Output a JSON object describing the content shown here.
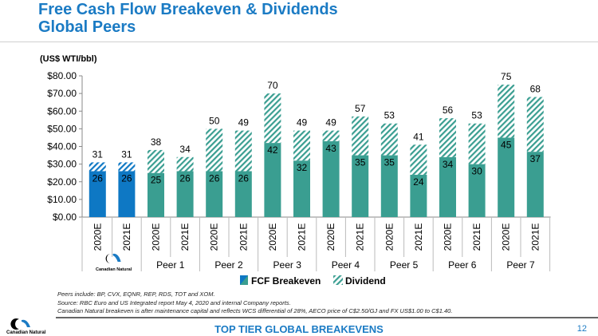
{
  "header": {
    "title_line1": "Free Cash Flow Breakeven & Dividends",
    "title_line2": "Global Peers"
  },
  "chart_data": {
    "type": "bar",
    "stacked": true,
    "ylabel": "(US$ WTI/bbl)",
    "ylim": [
      0,
      80
    ],
    "yticks": [
      "$0.00",
      "$10.00",
      "$20.00",
      "$30.00",
      "$40.00",
      "$50.00",
      "$60.00",
      "$70.00",
      "$80.00"
    ],
    "grid": false,
    "legend_position": "bottom",
    "groups": [
      {
        "label": "Canadian Natural",
        "logo": true
      },
      {
        "label": "Peer 1"
      },
      {
        "label": "Peer 2"
      },
      {
        "label": "Peer 3"
      },
      {
        "label": "Peer 4"
      },
      {
        "label": "Peer 5"
      },
      {
        "label": "Peer 6"
      },
      {
        "label": "Peer 7"
      }
    ],
    "categories": [
      "2020E",
      "2021E",
      "2020E",
      "2021E",
      "2020E",
      "2021E",
      "2020E",
      "2021E",
      "2020E",
      "2021E",
      "2020E",
      "2021E",
      "2020E",
      "2021E",
      "2020E",
      "2021E"
    ],
    "series": [
      {
        "name": "FCF Breakeven",
        "values": [
          26,
          26,
          25,
          26,
          26,
          26,
          42,
          32,
          43,
          35,
          35,
          24,
          34,
          30,
          45,
          37
        ]
      },
      {
        "name": "Dividend",
        "values": [
          5,
          5,
          13,
          8,
          24,
          23,
          28,
          17,
          6,
          22,
          18,
          17,
          22,
          23,
          30,
          31
        ],
        "pattern": "hatched"
      }
    ],
    "totals": [
      31,
      31,
      38,
      34,
      50,
      49,
      70,
      49,
      49,
      57,
      53,
      41,
      56,
      53,
      75,
      68
    ],
    "colors": {
      "canadian_natural": "#0e78c4",
      "peers": "#3a9e91"
    }
  },
  "notes": [
    "Peers include: BP, CVX, EQNR, REP, RDS, TOT and XOM.",
    "Source: RBC Euro and US Integrated report May 4, 2020 and internal Company reports.",
    "Canadian Natural breakeven is after maintenance capital and reflects WCS differential of 28%, AECO price of C$2.50/GJ and FX US$1.00 to C$1.40."
  ],
  "footer": {
    "tagline": "TOP TIER GLOBAL BREAKEVENS",
    "page": "12",
    "logo_text": "Canadian Natural"
  }
}
